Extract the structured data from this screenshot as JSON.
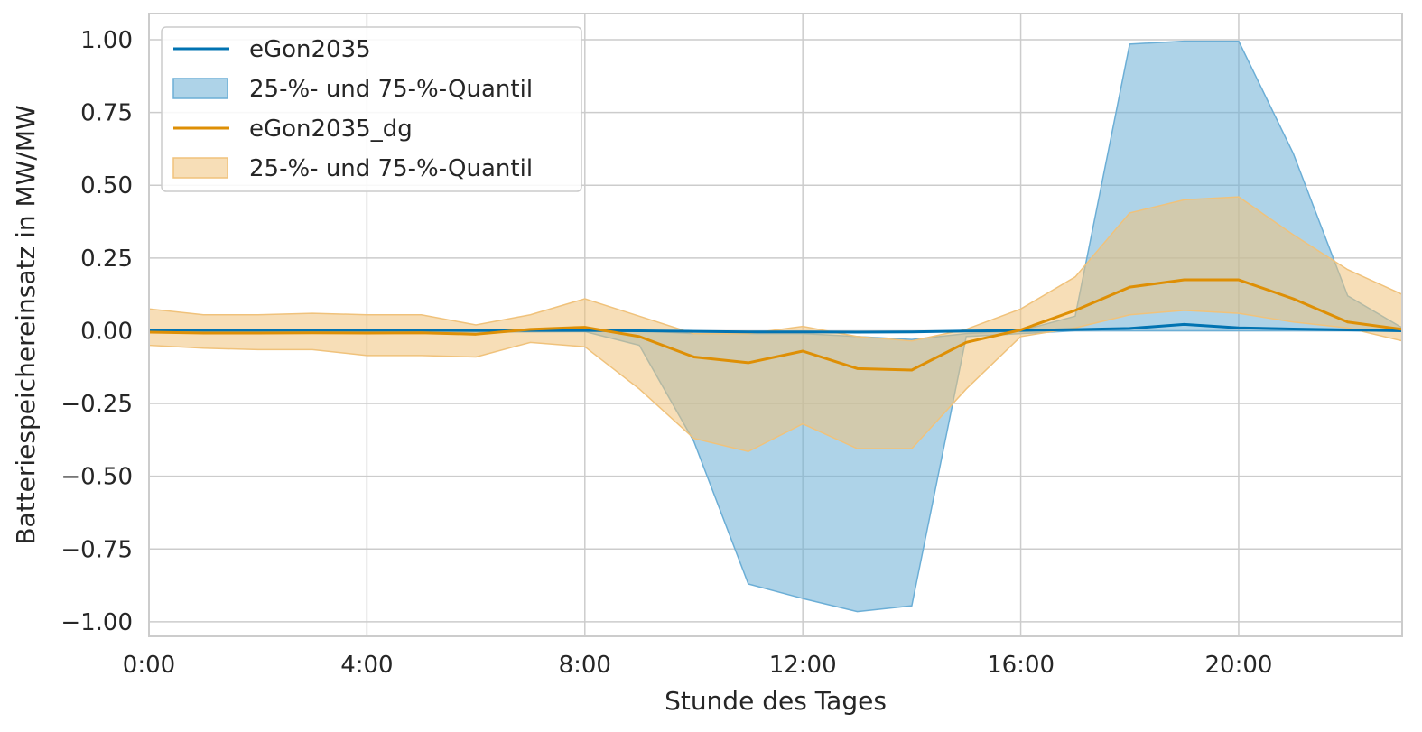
{
  "chart_data": {
    "type": "line",
    "title": "",
    "xlabel": "Stunde des Tages",
    "ylabel": "Batteriespeichereinsatz in MW/MW",
    "x": [
      0,
      1,
      2,
      3,
      4,
      5,
      6,
      7,
      8,
      9,
      10,
      11,
      12,
      13,
      14,
      15,
      16,
      17,
      18,
      19,
      20,
      21,
      22,
      23
    ],
    "xlim": [
      0,
      23
    ],
    "ylim": [
      -1.05,
      1.09
    ],
    "x_ticks": [
      0,
      4,
      8,
      12,
      16,
      20
    ],
    "x_tick_labels": [
      "0:00",
      "4:00",
      "8:00",
      "12:00",
      "16:00",
      "20:00"
    ],
    "y_ticks": [
      1.0,
      0.75,
      0.5,
      0.25,
      0.0,
      -0.25,
      -0.5,
      -0.75,
      -1.0
    ],
    "y_tick_labels": [
      "1.00",
      "0.75",
      "0.50",
      "0.25",
      "0.00",
      "−0.25",
      "−0.50",
      "−0.75",
      "−1.00"
    ],
    "grid": true,
    "legend_position": "top-left",
    "series": [
      {
        "name": "eGon2035",
        "band_name": "25-%- und 75-%-Quantil",
        "color": "#0173b2",
        "band_color": "#6baed6",
        "values": [
          0.003,
          0.002,
          0.002,
          0.002,
          0.002,
          0.002,
          0.001,
          0.001,
          0.001,
          0.0,
          -0.002,
          -0.004,
          -0.004,
          -0.005,
          -0.004,
          -0.001,
          0.001,
          0.004,
          0.008,
          0.022,
          0.01,
          0.006,
          0.003,
          0.0
        ],
        "q25": [
          -0.005,
          -0.005,
          -0.005,
          -0.006,
          -0.006,
          -0.006,
          -0.005,
          -0.004,
          -0.003,
          -0.05,
          -0.38,
          -0.87,
          -0.92,
          -0.965,
          -0.945,
          -0.02,
          -0.01,
          0.0,
          0.0,
          0.0,
          0.0,
          0.0,
          0.0,
          0.0
        ],
        "q75": [
          0.005,
          0.005,
          0.005,
          0.005,
          0.005,
          0.005,
          0.005,
          0.005,
          0.005,
          0.0,
          -0.01,
          -0.01,
          -0.01,
          -0.02,
          -0.03,
          -0.01,
          0.0,
          0.05,
          0.985,
          0.995,
          0.995,
          0.61,
          0.12,
          0.01
        ]
      },
      {
        "name": "eGon2035_dg",
        "band_name": "25-%- und 75-%-Quantil",
        "color": "#de8f05",
        "band_color": "#f0c27b",
        "values": [
          -0.005,
          -0.008,
          -0.008,
          -0.007,
          -0.008,
          -0.007,
          -0.012,
          0.005,
          0.012,
          -0.02,
          -0.09,
          -0.11,
          -0.07,
          -0.13,
          -0.135,
          -0.04,
          0.003,
          0.07,
          0.15,
          0.175,
          0.175,
          0.11,
          0.03,
          0.005
        ],
        "q25": [
          -0.05,
          -0.06,
          -0.065,
          -0.065,
          -0.085,
          -0.085,
          -0.09,
          -0.04,
          -0.055,
          -0.2,
          -0.37,
          -0.415,
          -0.32,
          -0.405,
          -0.405,
          -0.2,
          -0.02,
          0.01,
          0.055,
          0.07,
          0.06,
          0.03,
          0.01,
          -0.035
        ],
        "q75": [
          0.075,
          0.055,
          0.055,
          0.06,
          0.055,
          0.055,
          0.02,
          0.055,
          0.11,
          0.05,
          -0.01,
          -0.01,
          0.015,
          -0.02,
          -0.035,
          0.005,
          0.075,
          0.185,
          0.405,
          0.45,
          0.46,
          0.33,
          0.21,
          0.125
        ]
      }
    ]
  }
}
